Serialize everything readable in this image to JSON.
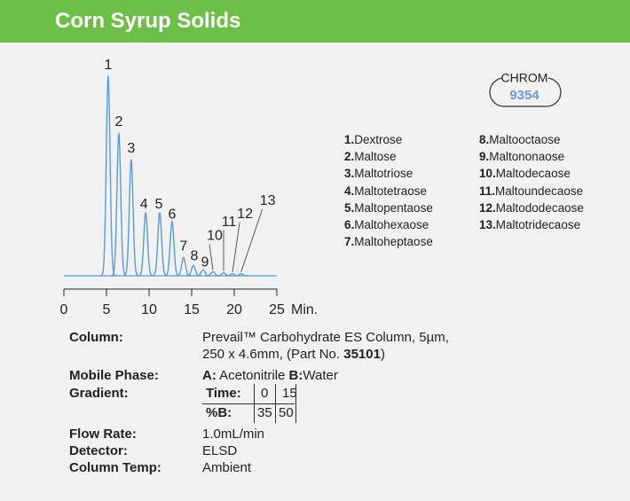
{
  "header": {
    "title": "Corn Syrup Solids"
  },
  "chart_data": {
    "type": "chromatogram",
    "x_unit": "Min.",
    "xlim": [
      0,
      25
    ],
    "xticks": [
      0,
      5,
      10,
      15,
      20,
      25
    ],
    "ylim": [
      0,
      100
    ],
    "color": "#5b9bd5",
    "peaks": [
      {
        "label": "1",
        "time": 5.2,
        "height": 98
      },
      {
        "label": "2",
        "time": 6.45,
        "height": 70
      },
      {
        "label": "3",
        "time": 7.9,
        "height": 57
      },
      {
        "label": "4",
        "time": 9.6,
        "height": 31
      },
      {
        "label": "5",
        "time": 11.25,
        "height": 31
      },
      {
        "label": "6",
        "time": 12.7,
        "height": 26.5
      },
      {
        "label": "7",
        "time": 14.05,
        "height": 9
      },
      {
        "label": "8",
        "time": 15.2,
        "height": 5
      },
      {
        "label": "9",
        "time": 16.35,
        "height": 3
      },
      {
        "label": "10",
        "time": 17.5,
        "height": 2
      },
      {
        "label": "11",
        "time": 18.75,
        "height": 1.5
      },
      {
        "label": "12",
        "time": 19.8,
        "height": 1
      },
      {
        "label": "13",
        "time": 20.8,
        "height": 1
      }
    ]
  },
  "badge": {
    "label": "CHROM",
    "number": "9354"
  },
  "compounds": [
    {
      "number": "1.",
      "name": "Dextrose"
    },
    {
      "number": "2.",
      "name": "Maltose"
    },
    {
      "number": "3.",
      "name": "Maltotriose"
    },
    {
      "number": "4.",
      "name": "Maltotetraose"
    },
    {
      "number": "5.",
      "name": "Maltopentaose"
    },
    {
      "number": "6.",
      "name": "Maltohexaose"
    },
    {
      "number": "7.",
      "name": "Maltoheptaose"
    },
    {
      "number": "8.",
      "name": "Maltooctaose"
    },
    {
      "number": "9.",
      "name": "Maltononaose"
    },
    {
      "number": "10.",
      "name": "Maltodecaose"
    },
    {
      "number": "11.",
      "name": "Maltoundecaose"
    },
    {
      "number": "12.",
      "name": "Maltododecaose"
    },
    {
      "number": "13.",
      "name": "Maltotridecaose"
    }
  ],
  "conditions": {
    "column": {
      "label": "Column:",
      "line1": "Prevail™ Carbohydrate ES Column, 5µm,",
      "line2": "250 x 4.6mm, (Part No. ",
      "part": "35101",
      "line2_end": ")"
    },
    "mobile_phase": {
      "label": "Mobile Phase:",
      "a_label": "A:",
      "a": " Acetonitrile ",
      "b_label": "B:",
      "b": "Water"
    },
    "gradient": {
      "label": "Gradient:",
      "time_label": "Time:",
      "times": [
        0,
        15
      ],
      "b_label": "%B:",
      "b_values": [
        35,
        50
      ]
    },
    "flow_rate": {
      "label": "Flow Rate:",
      "value": "1.0mL/min"
    },
    "detector": {
      "label": "Detector:",
      "value": "ELSD"
    },
    "column_temp": {
      "label": "Column Temp:",
      "value": "Ambient"
    }
  }
}
